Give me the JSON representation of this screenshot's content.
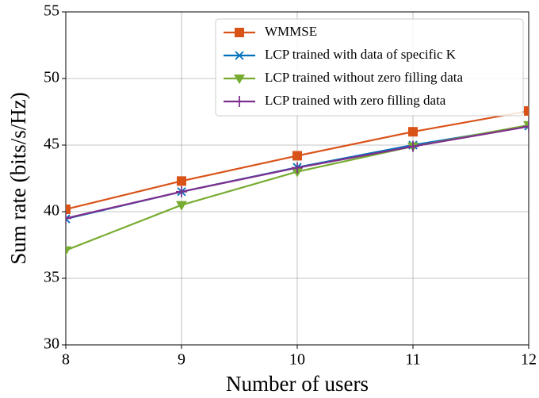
{
  "chart_data": {
    "type": "line",
    "x_label": "Number of users",
    "y_label": "Sum rate (bits/s/Hz)",
    "x": [
      8,
      9,
      10,
      11,
      12
    ],
    "series": [
      {
        "name": "WMMSE",
        "color": "#d95319",
        "marker": "square",
        "values": [
          40.18,
          42.3,
          44.2,
          46.0,
          47.56
        ]
      },
      {
        "name": "LCP trained with data of specific K",
        "color": "#0072bd",
        "marker": "x",
        "values": [
          39.46,
          41.5,
          43.33,
          45.0,
          46.43
        ]
      },
      {
        "name": "LCP trained without zero filling data",
        "color": "#77ac30",
        "marker": "triangle-down",
        "values": [
          37.1,
          40.5,
          43.0,
          44.9,
          46.5
        ]
      },
      {
        "name": "LCP trained with zero filling data",
        "color": "#7e2f8e",
        "marker": "plus",
        "values": [
          39.5,
          41.5,
          43.3,
          44.9,
          46.4
        ]
      }
    ],
    "xlim": [
      8,
      12
    ],
    "xticks": [
      8,
      9,
      10,
      11,
      12
    ],
    "ylim": [
      30,
      55
    ],
    "yticks": [
      30,
      35,
      40,
      45,
      50,
      55
    ],
    "grid": true,
    "legend": "upper right"
  }
}
